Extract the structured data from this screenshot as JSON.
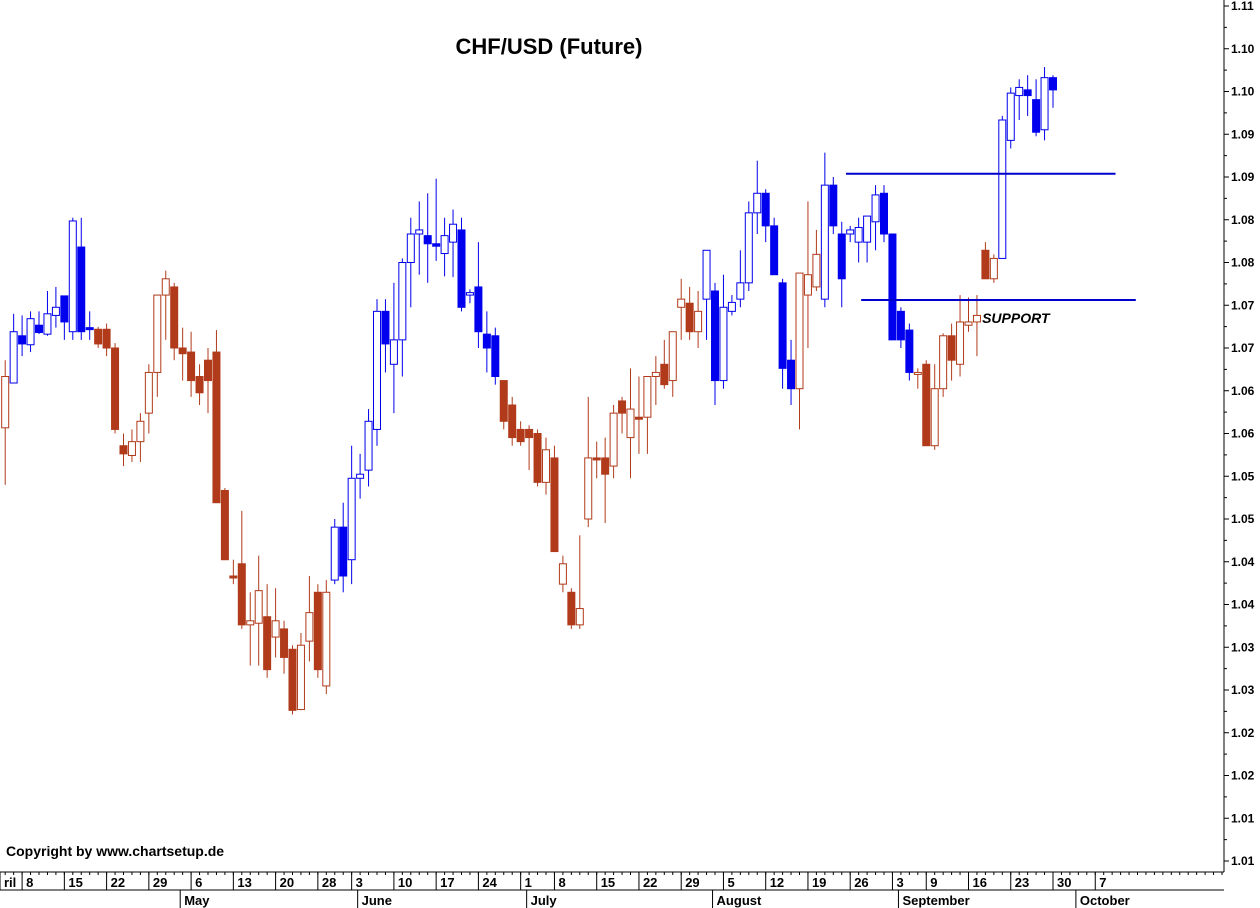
{
  "chart_data": {
    "type": "candlestick",
    "title": "CHF/USD  (Future)",
    "copyright": "Copyright by www.chartsetup.de",
    "y_axis": {
      "position": "right",
      "min": 1.005,
      "max": 1.11,
      "tick_labels": [
        "1.11",
        "1.10",
        "1.10",
        "1.09",
        "1.09",
        "1.08",
        "1.08",
        "1.07",
        "1.07",
        "1.06",
        "1.06",
        "1.05",
        "1.05",
        "1.04",
        "1.04",
        "1.03",
        "1.03",
        "1.02",
        "1.02",
        "1.01",
        "1.01"
      ]
    },
    "x_axis": {
      "day_ticks": [
        {
          "label": "ril",
          "i": -2.1
        },
        {
          "label": "8",
          "i": 2
        },
        {
          "label": "15",
          "i": 7
        },
        {
          "label": "22",
          "i": 12
        },
        {
          "label": "29",
          "i": 17
        },
        {
          "label": "6",
          "i": 22
        },
        {
          "label": "13",
          "i": 27
        },
        {
          "label": "20",
          "i": 32
        },
        {
          "label": "28",
          "i": 37
        },
        {
          "label": "3",
          "i": 41
        },
        {
          "label": "10",
          "i": 46
        },
        {
          "label": "17",
          "i": 51
        },
        {
          "label": "24",
          "i": 56
        },
        {
          "label": "1",
          "i": 61
        },
        {
          "label": "8",
          "i": 65
        },
        {
          "label": "15",
          "i": 70
        },
        {
          "label": "22",
          "i": 75
        },
        {
          "label": "29",
          "i": 80
        },
        {
          "label": "5",
          "i": 85
        },
        {
          "label": "12",
          "i": 90
        },
        {
          "label": "19",
          "i": 95
        },
        {
          "label": "26",
          "i": 100
        },
        {
          "label": "3",
          "i": 105
        },
        {
          "label": "9",
          "i": 109
        },
        {
          "label": "16",
          "i": 114
        },
        {
          "label": "23",
          "i": 119
        },
        {
          "label": "30",
          "i": 124
        },
        {
          "label": "7",
          "i": 129
        }
      ],
      "month_labels": [
        {
          "label": "May",
          "i": 20
        },
        {
          "label": "June",
          "i": 41
        },
        {
          "label": "July",
          "i": 61
        },
        {
          "label": "August",
          "i": 83
        },
        {
          "label": "September",
          "i": 105
        },
        {
          "label": "October",
          "i": 126
        }
      ]
    },
    "annotations": [
      {
        "type": "text",
        "label": "SUPPORT",
        "i": 119.6,
        "value": 1.0711
      },
      {
        "type": "hline",
        "from_i": 99.5,
        "to_i": 131.4,
        "value": 1.0894
      },
      {
        "type": "hline",
        "from_i": 101.3,
        "to_i": 133.8,
        "value": 1.0739
      }
    ],
    "colors": {
      "up_blue": "#0000ee",
      "up_hollow_outline": "#0000ee",
      "down_red": "#b03a1a",
      "down_hollow_outline": "#b03a1a",
      "support_line": "#0000cc"
    },
    "candles": [
      {
        "o": 1.0582,
        "h": 1.0665,
        "l": 1.0512,
        "c": 1.0645,
        "s": "ur"
      },
      {
        "o": 1.0637,
        "h": 1.0722,
        "l": 1.0637,
        "c": 1.07,
        "s": "ub"
      },
      {
        "o": 1.0695,
        "h": 1.072,
        "l": 1.067,
        "c": 1.0685,
        "s": "db"
      },
      {
        "o": 1.0684,
        "h": 1.0725,
        "l": 1.0675,
        "c": 1.0716,
        "s": "ub"
      },
      {
        "o": 1.0708,
        "h": 1.0725,
        "l": 1.0697,
        "c": 1.0699,
        "s": "dbf"
      },
      {
        "o": 1.0697,
        "h": 1.075,
        "l": 1.0695,
        "c": 1.0722,
        "s": "ub"
      },
      {
        "o": 1.072,
        "h": 1.0755,
        "l": 1.0705,
        "c": 1.073,
        "s": "ub"
      },
      {
        "o": 1.0712,
        "h": 1.0738,
        "l": 1.069,
        "c": 1.0744,
        "s": "dbf"
      },
      {
        "o": 1.07,
        "h": 1.084,
        "l": 1.069,
        "c": 1.0836,
        "s": "ub"
      },
      {
        "o": 1.0804,
        "h": 1.084,
        "l": 1.069,
        "c": 1.07,
        "s": "dbf"
      },
      {
        "o": 1.0705,
        "h": 1.0725,
        "l": 1.069,
        "c": 1.0705,
        "s": "db"
      },
      {
        "o": 1.0703,
        "h": 1.0706,
        "l": 1.068,
        "c": 1.0685,
        "s": "dr"
      },
      {
        "o": 1.0703,
        "h": 1.071,
        "l": 1.067,
        "c": 1.068,
        "s": "dr"
      },
      {
        "o": 1.068,
        "h": 1.0686,
        "l": 1.0575,
        "c": 1.058,
        "s": "dr"
      },
      {
        "o": 1.056,
        "h": 1.0575,
        "l": 1.0535,
        "c": 1.055,
        "s": "dr"
      },
      {
        "o": 1.0548,
        "h": 1.058,
        "l": 1.054,
        "c": 1.0565,
        "s": "ur"
      },
      {
        "o": 1.0565,
        "h": 1.06,
        "l": 1.054,
        "c": 1.059,
        "s": "ur"
      },
      {
        "o": 1.06,
        "h": 1.066,
        "l": 1.0575,
        "c": 1.065,
        "s": "ur"
      },
      {
        "o": 1.065,
        "h": 1.0745,
        "l": 1.062,
        "c": 1.0745,
        "s": "ur"
      },
      {
        "o": 1.0745,
        "h": 1.0775,
        "l": 1.069,
        "c": 1.0765,
        "s": "ur"
      },
      {
        "o": 1.0755,
        "h": 1.076,
        "l": 1.0665,
        "c": 1.068,
        "s": "dr"
      },
      {
        "o": 1.068,
        "h": 1.0705,
        "l": 1.064,
        "c": 1.0673,
        "s": "dr"
      },
      {
        "o": 1.0675,
        "h": 1.07,
        "l": 1.062,
        "c": 1.064,
        "s": "dr"
      },
      {
        "o": 1.0645,
        "h": 1.066,
        "l": 1.061,
        "c": 1.0625,
        "s": "dr"
      },
      {
        "o": 1.0665,
        "h": 1.068,
        "l": 1.06,
        "c": 1.064,
        "s": "dr"
      },
      {
        "o": 1.0675,
        "h": 1.0702,
        "l": 1.049,
        "c": 1.049,
        "s": "dr"
      },
      {
        "o": 1.0505,
        "h": 1.0508,
        "l": 1.042,
        "c": 1.042,
        "s": "dr"
      },
      {
        "o": 1.04,
        "h": 1.042,
        "l": 1.039,
        "c": 1.04,
        "s": "dr"
      },
      {
        "o": 1.0415,
        "h": 1.048,
        "l": 1.0335,
        "c": 1.034,
        "s": "dr"
      },
      {
        "o": 1.034,
        "h": 1.038,
        "l": 1.029,
        "c": 1.0345,
        "s": "ur"
      },
      {
        "o": 1.0342,
        "h": 1.0425,
        "l": 1.029,
        "c": 1.0382,
        "s": "ur"
      },
      {
        "o": 1.035,
        "h": 1.039,
        "l": 1.0275,
        "c": 1.0285,
        "s": "dr"
      },
      {
        "o": 1.0345,
        "h": 1.0385,
        "l": 1.03,
        "c": 1.0325,
        "s": "ur"
      },
      {
        "o": 1.0335,
        "h": 1.0345,
        "l": 1.028,
        "c": 1.03,
        "s": "dr"
      },
      {
        "o": 1.031,
        "h": 1.0315,
        "l": 1.023,
        "c": 1.0235,
        "s": "dr"
      },
      {
        "o": 1.0236,
        "h": 1.033,
        "l": 1.024,
        "c": 1.0315,
        "s": "ur"
      },
      {
        "o": 1.032,
        "h": 1.04,
        "l": 1.0295,
        "c": 1.0355,
        "s": "ur"
      },
      {
        "o": 1.038,
        "h": 1.039,
        "l": 1.0275,
        "c": 1.0285,
        "s": "dr"
      },
      {
        "o": 1.0265,
        "h": 1.0395,
        "l": 1.0255,
        "c": 1.038,
        "s": "ur"
      },
      {
        "o": 1.0395,
        "h": 1.047,
        "l": 1.039,
        "c": 1.046,
        "s": "ub"
      },
      {
        "o": 1.046,
        "h": 1.049,
        "l": 1.038,
        "c": 1.04,
        "s": "dbf"
      },
      {
        "o": 1.042,
        "h": 1.056,
        "l": 1.039,
        "c": 1.052,
        "s": "ub"
      },
      {
        "o": 1.052,
        "h": 1.055,
        "l": 1.0495,
        "c": 1.0525,
        "s": "ub"
      },
      {
        "o": 1.053,
        "h": 1.0605,
        "l": 1.051,
        "c": 1.059,
        "s": "ub"
      },
      {
        "o": 1.058,
        "h": 1.074,
        "l": 1.056,
        "c": 1.0725,
        "s": "ub"
      },
      {
        "o": 1.0725,
        "h": 1.074,
        "l": 1.065,
        "c": 1.0685,
        "s": "dbf"
      },
      {
        "o": 1.066,
        "h": 1.076,
        "l": 1.06,
        "c": 1.069,
        "s": "ub"
      },
      {
        "o": 1.069,
        "h": 1.079,
        "l": 1.0645,
        "c": 1.0785,
        "s": "ub"
      },
      {
        "o": 1.0785,
        "h": 1.084,
        "l": 1.073,
        "c": 1.082,
        "s": "ub"
      },
      {
        "o": 1.0825,
        "h": 1.086,
        "l": 1.077,
        "c": 1.082,
        "s": "ub"
      },
      {
        "o": 1.0818,
        "h": 1.087,
        "l": 1.076,
        "c": 1.0808,
        "s": "dbf"
      },
      {
        "o": 1.0808,
        "h": 1.0888,
        "l": 1.0787,
        "c": 1.0805,
        "s": "dbf"
      },
      {
        "o": 1.0796,
        "h": 1.084,
        "l": 1.0768,
        "c": 1.0818,
        "s": "ub"
      },
      {
        "o": 1.081,
        "h": 1.085,
        "l": 1.0767,
        "c": 1.0832,
        "s": "ub"
      },
      {
        "o": 1.0825,
        "h": 1.084,
        "l": 1.0725,
        "c": 1.073,
        "s": "dbf"
      },
      {
        "o": 1.0745,
        "h": 1.0752,
        "l": 1.0735,
        "c": 1.0748,
        "s": "ub"
      },
      {
        "o": 1.0755,
        "h": 1.081,
        "l": 1.068,
        "c": 1.07,
        "s": "dbf"
      },
      {
        "o": 1.0697,
        "h": 1.0725,
        "l": 1.065,
        "c": 1.068,
        "s": "db"
      },
      {
        "o": 1.0695,
        "h": 1.0705,
        "l": 1.0635,
        "c": 1.0645,
        "s": "dbf"
      },
      {
        "o": 1.064,
        "h": 1.064,
        "l": 1.058,
        "c": 1.059,
        "s": "dr"
      },
      {
        "o": 1.061,
        "h": 1.062,
        "l": 1.056,
        "c": 1.057,
        "s": "dr"
      },
      {
        "o": 1.058,
        "h": 1.059,
        "l": 1.056,
        "c": 1.0565,
        "s": "dr"
      },
      {
        "o": 1.058,
        "h": 1.0585,
        "l": 1.053,
        "c": 1.057,
        "s": "dr"
      },
      {
        "o": 1.0575,
        "h": 1.058,
        "l": 1.051,
        "c": 1.0515,
        "s": "dr"
      },
      {
        "o": 1.0555,
        "h": 1.057,
        "l": 1.05,
        "c": 1.0515,
        "s": "ur"
      },
      {
        "o": 1.0545,
        "h": 1.056,
        "l": 1.043,
        "c": 1.043,
        "s": "dr"
      },
      {
        "o": 1.0415,
        "h": 1.0425,
        "l": 1.038,
        "c": 1.039,
        "s": "ur"
      },
      {
        "o": 1.038,
        "h": 1.0385,
        "l": 1.0335,
        "c": 1.034,
        "s": "dr"
      },
      {
        "o": 1.036,
        "h": 1.045,
        "l": 1.0335,
        "c": 1.034,
        "s": "ur"
      },
      {
        "o": 1.047,
        "h": 1.062,
        "l": 1.046,
        "c": 1.0545,
        "s": "ur"
      },
      {
        "o": 1.0545,
        "h": 1.0565,
        "l": 1.052,
        "c": 1.0545,
        "s": "dr"
      },
      {
        "o": 1.0545,
        "h": 1.057,
        "l": 1.0465,
        "c": 1.0525,
        "s": "dr"
      },
      {
        "o": 1.0535,
        "h": 1.061,
        "l": 1.052,
        "c": 1.06,
        "s": "ur"
      },
      {
        "o": 1.0615,
        "h": 1.062,
        "l": 1.0575,
        "c": 1.06,
        "s": "dr"
      },
      {
        "o": 1.0605,
        "h": 1.0655,
        "l": 1.052,
        "c": 1.057,
        "s": "ur"
      },
      {
        "o": 1.0595,
        "h": 1.0645,
        "l": 1.055,
        "c": 1.0595,
        "s": "dr"
      },
      {
        "o": 1.0595,
        "h": 1.0645,
        "l": 1.055,
        "c": 1.0645,
        "s": "ur"
      },
      {
        "o": 1.0645,
        "h": 1.067,
        "l": 1.061,
        "c": 1.065,
        "s": "ur"
      },
      {
        "o": 1.066,
        "h": 1.069,
        "l": 1.063,
        "c": 1.0635,
        "s": "dr"
      },
      {
        "o": 1.064,
        "h": 1.07,
        "l": 1.062,
        "c": 1.07,
        "s": "ur"
      },
      {
        "o": 1.073,
        "h": 1.0765,
        "l": 1.069,
        "c": 1.074,
        "s": "ur"
      },
      {
        "o": 1.0735,
        "h": 1.0755,
        "l": 1.069,
        "c": 1.07,
        "s": "dr"
      },
      {
        "o": 1.07,
        "h": 1.075,
        "l": 1.068,
        "c": 1.0725,
        "s": "ur"
      },
      {
        "o": 1.074,
        "h": 1.08,
        "l": 1.069,
        "c": 1.08,
        "s": "ub"
      },
      {
        "o": 1.075,
        "h": 1.076,
        "l": 1.061,
        "c": 1.064,
        "s": "db"
      },
      {
        "o": 1.064,
        "h": 1.077,
        "l": 1.063,
        "c": 1.073,
        "s": "ub"
      },
      {
        "o": 1.0725,
        "h": 1.0745,
        "l": 1.072,
        "c": 1.0736,
        "s": "ub"
      },
      {
        "o": 1.074,
        "h": 1.08,
        "l": 1.073,
        "c": 1.076,
        "s": "ub"
      },
      {
        "o": 1.076,
        "h": 1.086,
        "l": 1.075,
        "c": 1.0846,
        "s": "ub"
      },
      {
        "o": 1.0846,
        "h": 1.091,
        "l": 1.082,
        "c": 1.087,
        "s": "ub"
      },
      {
        "o": 1.087,
        "h": 1.0875,
        "l": 1.081,
        "c": 1.083,
        "s": "db"
      },
      {
        "o": 1.083,
        "h": 1.084,
        "l": 1.077,
        "c": 1.077,
        "s": "db"
      },
      {
        "o": 1.076,
        "h": 1.0765,
        "l": 1.063,
        "c": 1.0655,
        "s": "db"
      },
      {
        "o": 1.0665,
        "h": 1.069,
        "l": 1.061,
        "c": 1.063,
        "s": "db"
      },
      {
        "o": 1.063,
        "h": 1.077,
        "l": 1.058,
        "c": 1.0772,
        "s": "ur"
      },
      {
        "o": 1.0745,
        "h": 1.086,
        "l": 1.068,
        "c": 1.077,
        "s": "ur"
      },
      {
        "o": 1.0795,
        "h": 1.0825,
        "l": 1.075,
        "c": 1.0755,
        "s": "ur"
      },
      {
        "o": 1.074,
        "h": 1.092,
        "l": 1.073,
        "c": 1.088,
        "s": "ub"
      },
      {
        "o": 1.088,
        "h": 1.089,
        "l": 1.082,
        "c": 1.083,
        "s": "db"
      },
      {
        "o": 1.082,
        "h": 1.0835,
        "l": 1.073,
        "c": 1.0765,
        "s": "dbf"
      },
      {
        "o": 1.082,
        "h": 1.083,
        "l": 1.081,
        "c": 1.0825,
        "s": "ub"
      },
      {
        "o": 1.081,
        "h": 1.084,
        "l": 1.0785,
        "c": 1.0828,
        "s": "ub"
      },
      {
        "o": 1.081,
        "h": 1.084,
        "l": 1.0785,
        "c": 1.0842,
        "s": "ub"
      },
      {
        "o": 1.0835,
        "h": 1.088,
        "l": 1.08,
        "c": 1.0868,
        "s": "ub"
      },
      {
        "o": 1.087,
        "h": 1.088,
        "l": 1.081,
        "c": 1.082,
        "s": "db"
      },
      {
        "o": 1.082,
        "h": 1.082,
        "l": 1.069,
        "c": 1.069,
        "s": "db"
      },
      {
        "o": 1.0725,
        "h": 1.073,
        "l": 1.068,
        "c": 1.069,
        "s": "db"
      },
      {
        "o": 1.0702,
        "h": 1.071,
        "l": 1.064,
        "c": 1.065,
        "s": "db"
      },
      {
        "o": 1.0648,
        "h": 1.0655,
        "l": 1.063,
        "c": 1.065,
        "s": "ur"
      },
      {
        "o": 1.066,
        "h": 1.0665,
        "l": 1.056,
        "c": 1.056,
        "s": "dr"
      },
      {
        "o": 1.056,
        "h": 1.066,
        "l": 1.0555,
        "c": 1.063,
        "s": "ur"
      },
      {
        "o": 1.063,
        "h": 1.0698,
        "l": 1.062,
        "c": 1.0695,
        "s": "ur"
      },
      {
        "o": 1.0695,
        "h": 1.071,
        "l": 1.064,
        "c": 1.0665,
        "s": "dr"
      },
      {
        "o": 1.066,
        "h": 1.0745,
        "l": 1.0645,
        "c": 1.0712,
        "s": "ur"
      },
      {
        "o": 1.0708,
        "h": 1.0742,
        "l": 1.07,
        "c": 1.0712,
        "s": "ur"
      },
      {
        "o": 1.0712,
        "h": 1.0745,
        "l": 1.067,
        "c": 1.072,
        "s": "ur"
      },
      {
        "o": 1.08,
        "h": 1.081,
        "l": 1.0765,
        "c": 1.0765,
        "s": "dr"
      },
      {
        "o": 1.0765,
        "h": 1.0795,
        "l": 1.076,
        "c": 1.079,
        "s": "ur"
      },
      {
        "o": 1.079,
        "h": 1.0965,
        "l": 1.079,
        "c": 1.096,
        "s": "ub"
      },
      {
        "o": 1.0935,
        "h": 1.1,
        "l": 1.0925,
        "c": 1.0993,
        "s": "ub"
      },
      {
        "o": 1.099,
        "h": 1.101,
        "l": 1.096,
        "c": 1.1,
        "s": "ub"
      },
      {
        "o": 1.0997,
        "h": 1.1015,
        "l": 1.0965,
        "c": 1.099,
        "s": "db"
      },
      {
        "o": 1.0985,
        "h": 1.101,
        "l": 1.094,
        "c": 1.0945,
        "s": "db"
      },
      {
        "o": 1.0948,
        "h": 1.1025,
        "l": 1.0935,
        "c": 1.1012,
        "s": "ub"
      },
      {
        "o": 1.1012,
        "h": 1.1015,
        "l": 1.0975,
        "c": 1.0997,
        "s": "db"
      }
    ]
  }
}
